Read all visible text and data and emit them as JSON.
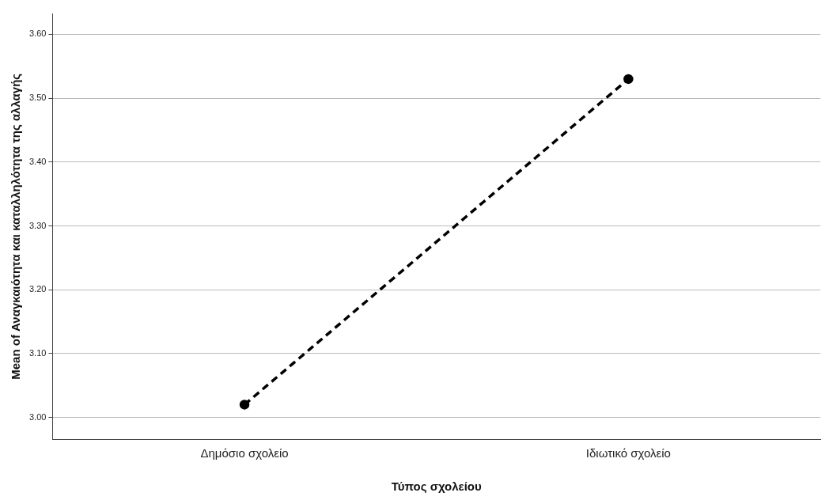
{
  "chart_data": {
    "type": "line",
    "xlabel": "Τύπος σχολείου",
    "ylabel": "Mean of Αναγκαιότητα και καταλληλότητα της αλλαγής",
    "categories": [
      "Δημόσιο σχολείο",
      "Ιδιωτικό σχολείο"
    ],
    "series": [
      {
        "color": "#000000",
        "values": [
          3.02,
          3.53
        ]
      }
    ],
    "ylim": [
      2.966,
      3.632
    ],
    "yticks": [
      {
        "value": 3.0,
        "label": "3.00"
      },
      {
        "value": 3.1,
        "label": "3.10"
      },
      {
        "value": 3.2,
        "label": "3.20"
      },
      {
        "value": 3.3,
        "label": "3.30"
      },
      {
        "value": 3.4,
        "label": "3.40"
      },
      {
        "value": 3.5,
        "label": "3.50"
      },
      {
        "value": 3.6,
        "label": "3.60"
      }
    ],
    "grid": "y",
    "legend": false,
    "marker": "circle",
    "line_style": "dashed"
  }
}
